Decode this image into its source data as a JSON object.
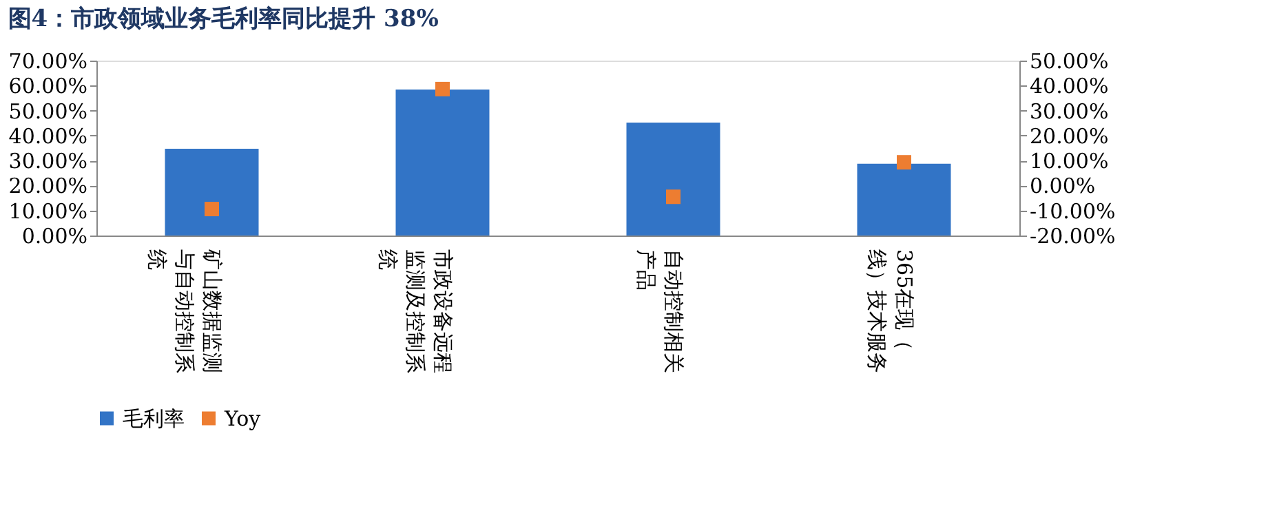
{
  "chart_data": {
    "type": "bar",
    "title": "图4：市政领域业务毛利率同比提升 38%",
    "categories": [
      "矿山数据监测与自动控制系统",
      "市政设备远程监测及控制系统",
      "自动控制相关产品",
      "365在现（线）技术服务"
    ],
    "series": [
      {
        "name": "毛利率",
        "color": "#3274c6",
        "values": [
          34.7,
          58.4,
          45.2,
          28.7
        ]
      },
      {
        "name": "Yoy",
        "type": "scatter",
        "marker": "square",
        "axis": "y2",
        "color": "#ed7d31",
        "values": [
          -9.4,
          38.6,
          -4.5,
          9.3
        ]
      }
    ],
    "ylim": [
      0,
      70
    ],
    "yticks": [
      {
        "value": 0,
        "label": "0.00%"
      },
      {
        "value": 10,
        "label": "10.00%"
      },
      {
        "value": 20,
        "label": "20.00%"
      },
      {
        "value": 30,
        "label": "30.00%"
      },
      {
        "value": 40,
        "label": "40.00%"
      },
      {
        "value": 50,
        "label": "50.00%"
      },
      {
        "value": 60,
        "label": "60.00%"
      },
      {
        "value": 70,
        "label": "70.00%"
      }
    ],
    "y2lim": [
      -20,
      50
    ],
    "y2ticks": [
      {
        "value": -20,
        "label": "-20.00%"
      },
      {
        "value": -10,
        "label": "-10.00%"
      },
      {
        "value": 0,
        "label": "0.00%"
      },
      {
        "value": 10,
        "label": "10.00%"
      },
      {
        "value": 20,
        "label": "20.00%"
      },
      {
        "value": 30,
        "label": "30.00%"
      },
      {
        "value": 40,
        "label": "40.00%"
      },
      {
        "value": 50,
        "label": "50.00%"
      }
    ],
    "grid": false,
    "legend": "bottom"
  }
}
